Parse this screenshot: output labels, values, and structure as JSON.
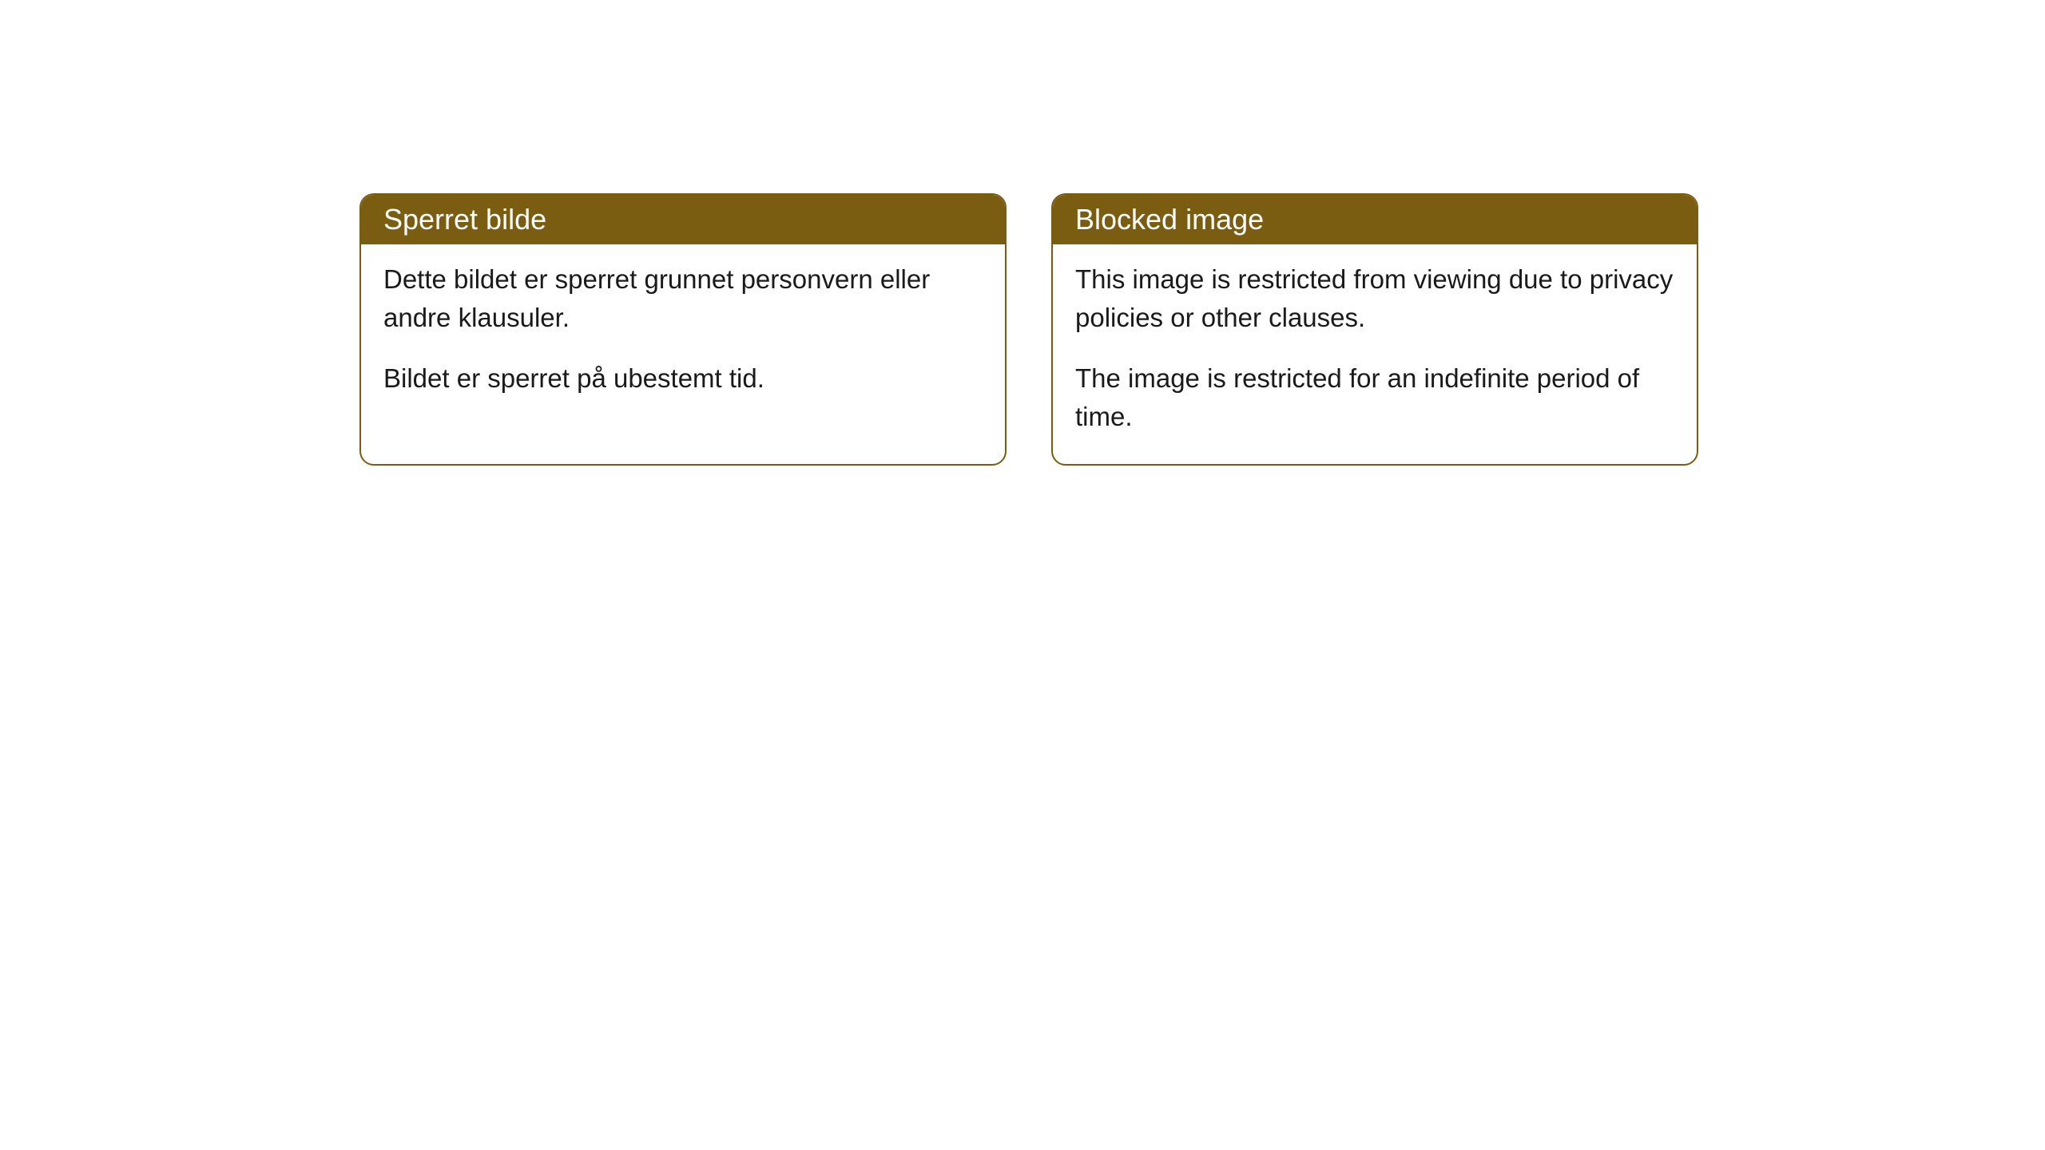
{
  "cards": [
    {
      "title": "Sperret bilde",
      "paragraph1": "Dette bildet er sperret grunnet personvern eller andre klausuler.",
      "paragraph2": "Bildet er sperret på ubestemt tid."
    },
    {
      "title": "Blocked image",
      "paragraph1": "This image is restricted from viewing due to privacy policies or other clauses.",
      "paragraph2": "The image is restricted for an indefinite period of time."
    }
  ],
  "style": {
    "header_bg_color": "#7a5d10",
    "header_text_color": "#ffffff",
    "border_color": "#7a5d10",
    "body_bg_color": "#ffffff",
    "body_text_color": "#1a1a1a",
    "border_radius": 18,
    "title_fontsize": 36,
    "body_fontsize": 33
  }
}
